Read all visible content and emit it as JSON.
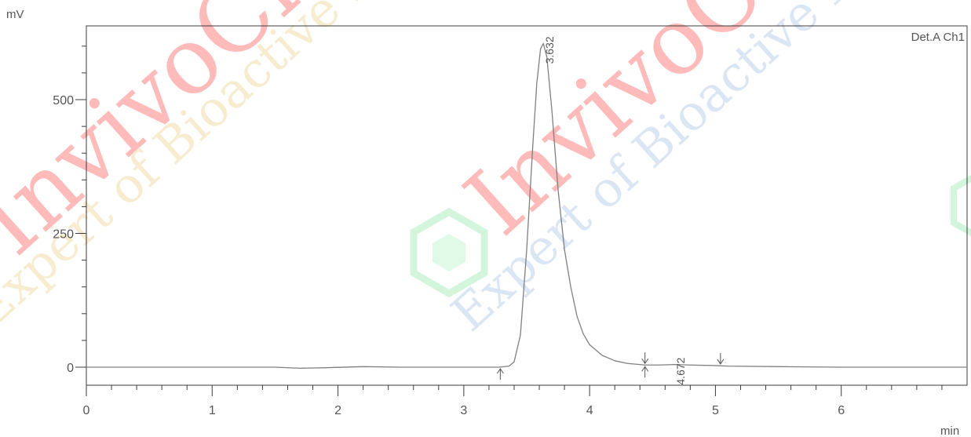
{
  "chart_data": {
    "type": "line",
    "title": "",
    "ylabel": "mV",
    "xlabel": "min",
    "detector_label": "Det.A Ch1",
    "xlim": [
      0,
      7.0
    ],
    "ylim": [
      -35,
      640
    ],
    "x_ticks": [
      {
        "value": 0,
        "label": "0"
      },
      {
        "value": 1,
        "label": "1"
      },
      {
        "value": 2,
        "label": "2"
      },
      {
        "value": 3,
        "label": "3"
      },
      {
        "value": 4,
        "label": "4"
      },
      {
        "value": 5,
        "label": "5"
      },
      {
        "value": 6,
        "label": "6"
      }
    ],
    "y_ticks": [
      {
        "value": 0,
        "label": "0"
      },
      {
        "value": 250,
        "label": "250"
      },
      {
        "value": 500,
        "label": "500"
      }
    ],
    "grid": false,
    "series": [
      {
        "color": "#808080",
        "x": [
          0,
          1.5,
          1.7,
          1.9,
          2.2,
          2.5,
          3.0,
          3.28,
          3.36,
          3.4,
          3.45,
          3.5,
          3.55,
          3.58,
          3.61,
          3.632,
          3.66,
          3.7,
          3.75,
          3.8,
          3.85,
          3.9,
          3.95,
          4.0,
          4.1,
          4.2,
          4.3,
          4.4,
          4.44,
          4.55,
          4.672,
          4.8,
          5.0,
          5.1,
          5.5,
          6.0,
          7.0
        ],
        "y": [
          0,
          0,
          -2,
          -1,
          1,
          0,
          0,
          0,
          2,
          10,
          60,
          220,
          420,
          530,
          595,
          605,
          580,
          480,
          330,
          220,
          150,
          95,
          62,
          42,
          22,
          12,
          7,
          5,
          4,
          4,
          5,
          4,
          3,
          2,
          1,
          0,
          0
        ]
      }
    ],
    "peaks": [
      {
        "rt": "3.632",
        "x": 3.632,
        "y": 605
      },
      {
        "rt": "4.672",
        "x": 4.672,
        "y": 5
      }
    ],
    "integration_marks": [
      {
        "x": 3.29,
        "y": 0,
        "direction": "up"
      },
      {
        "x": 4.44,
        "y": 4,
        "direction": "up"
      },
      {
        "x": 4.44,
        "y": 4,
        "direction": "down"
      },
      {
        "x": 5.04,
        "y": 3,
        "direction": "down"
      }
    ]
  },
  "watermark": {
    "brand": "InvivoChem",
    "tagline": "Expert of Bioactive Molecules",
    "brand_color": "#ff3b3b",
    "tagline_colors": [
      "#e8c878",
      "#98b8e0",
      "#98c8a8"
    ],
    "logo_color": "#7fe39b"
  }
}
